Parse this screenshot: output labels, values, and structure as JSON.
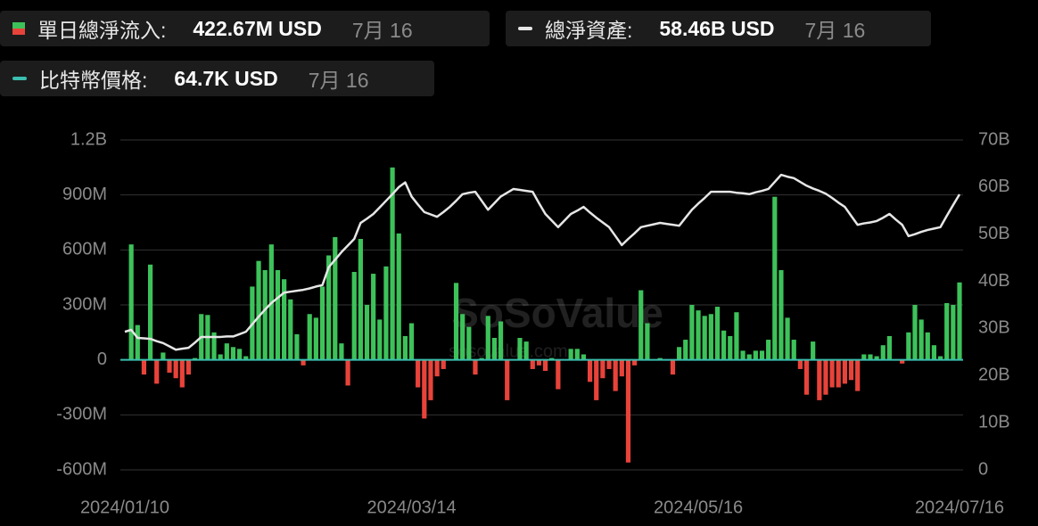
{
  "legend": [
    {
      "label": "單日總淨流入:",
      "value": "422.67M USD",
      "date": "7月 16"
    },
    {
      "label": "總淨資產:",
      "value": "58.46B USD",
      "date": "7月 16"
    },
    {
      "label": "比特幣價格:",
      "value": "64.7K USD",
      "date": "7月 16"
    }
  ],
  "watermark": {
    "brand": "SoSoValue",
    "url": "sosovalue.com"
  },
  "chart_data": {
    "type": "bar",
    "categories": [
      "2024/01/10",
      null,
      null,
      null,
      null,
      null,
      null,
      null,
      null,
      null,
      null,
      null,
      null,
      null,
      null,
      null,
      null,
      null,
      null,
      null,
      null,
      null,
      null,
      null,
      null,
      null,
      null,
      null,
      null,
      null,
      null,
      null,
      null,
      null,
      null,
      null,
      null,
      null,
      null,
      null,
      null,
      null,
      null,
      null,
      null,
      "2024/03/14",
      null,
      null,
      null,
      null,
      null,
      null,
      null,
      null,
      null,
      null,
      null,
      null,
      null,
      null,
      null,
      null,
      null,
      null,
      null,
      null,
      null,
      null,
      null,
      null,
      null,
      null,
      null,
      null,
      null,
      null,
      null,
      null,
      null,
      null,
      null,
      null,
      null,
      null,
      null,
      null,
      null,
      null,
      null,
      null,
      "2024/05/16",
      null,
      null,
      null,
      null,
      null,
      null,
      null,
      null,
      null,
      null,
      null,
      null,
      null,
      null,
      null,
      null,
      null,
      null,
      null,
      null,
      null,
      null,
      null,
      null,
      null,
      null,
      null,
      null,
      null,
      null,
      null,
      null,
      null,
      null,
      null,
      null,
      null,
      null,
      null,
      null,
      "2024/07/16"
    ],
    "series": [
      {
        "type": "bar",
        "color": "#3dc25a",
        "negative_color": "#e8433a",
        "values": [
          null,
          630,
          190,
          -80,
          520,
          -130,
          40,
          -70,
          -100,
          -150,
          -80,
          10,
          250,
          245,
          150,
          30,
          90,
          70,
          60,
          20,
          400,
          540,
          490,
          630,
          490,
          440,
          330,
          140,
          -30,
          250,
          230,
          400,
          570,
          670,
          90,
          -140,
          480,
          660,
          300,
          470,
          220,
          510,
          1050,
          690,
          130,
          200,
          -150,
          -320,
          -220,
          -90,
          -50,
          0,
          420,
          250,
          180,
          -80,
          10,
          240,
          120,
          210,
          -220,
          0,
          120,
          100,
          -50,
          -30,
          -60,
          10,
          -160,
          0,
          60,
          60,
          30,
          -120,
          -220,
          -100,
          -50,
          -170,
          -90,
          -560,
          -30,
          380,
          200,
          0,
          10,
          0,
          -80,
          70,
          110,
          300,
          270,
          240,
          250,
          290,
          160,
          130,
          260,
          50,
          30,
          50,
          50,
          110,
          890,
          490,
          230,
          110,
          -50,
          -190,
          100,
          -220,
          -190,
          -150,
          -150,
          -130,
          -110,
          -170,
          30,
          30,
          20,
          80,
          130,
          0,
          -20,
          150,
          300,
          220,
          150,
          80,
          20,
          310,
          300,
          422.67
        ]
      },
      {
        "type": "line",
        "axis": "y2",
        "color": "#e6e6e6",
        "values": [
          29.3,
          29.7,
          28,
          27.9,
          27.8,
          27.3,
          26.9,
          26.2,
          25.5,
          25.7,
          25.9,
          27,
          28.2,
          28.2,
          28.2,
          28.2,
          28.3,
          28.3,
          28.8,
          29.3,
          30.9,
          32.5,
          34,
          35.4,
          36.5,
          37.6,
          37.8,
          38,
          38.2,
          38.5,
          38.9,
          39.2,
          43,
          44.6,
          46.2,
          47.6,
          49,
          52.4,
          53.3,
          54.3,
          55.7,
          57.1,
          58.5,
          60,
          61,
          58,
          56.3,
          54.7,
          54.2,
          53.7,
          54.7,
          55.8,
          57.1,
          58.5,
          58.8,
          59,
          57.1,
          55.2,
          56.6,
          58,
          58.8,
          59.6,
          59.4,
          59.2,
          59,
          56.6,
          54.3,
          52.9,
          51.5,
          52.9,
          54.3,
          55,
          55.8,
          54.6,
          53.5,
          52.5,
          51.5,
          49.6,
          47.7,
          49,
          50.2,
          51.5,
          51.8,
          52.1,
          52.4,
          52.2,
          52,
          51.8,
          53.5,
          55.2,
          56.5,
          57.7,
          59,
          59,
          59,
          59,
          58.8,
          58.7,
          58.5,
          58.9,
          59.2,
          59.6,
          61.1,
          62.6,
          62.2,
          61.9,
          61.1,
          60.3,
          59.7,
          59.2,
          58.6,
          57.7,
          56.7,
          55.8,
          53.9,
          52,
          52.3,
          52.5,
          52.8,
          53.5,
          54.3,
          53.1,
          52,
          49.6,
          50,
          50.5,
          50.9,
          51.2,
          51.5,
          53.9,
          56.2,
          58.46
        ]
      }
    ],
    "ylim": [
      -600,
      1200
    ],
    "yticks": [
      {
        "value": -600,
        "label": "-600M"
      },
      {
        "value": -300,
        "label": "-300M"
      },
      0,
      {
        "value": 300,
        "label": "300M"
      },
      {
        "value": 600,
        "label": "600M"
      },
      {
        "value": 900,
        "label": "900M"
      },
      {
        "value": 1200,
        "label": "1.2B"
      }
    ],
    "y2lim": [
      0,
      70
    ],
    "y2ticks": [
      0,
      {
        "value": 10,
        "label": "10B"
      },
      {
        "value": 20,
        "label": "20B"
      },
      {
        "value": 30,
        "label": "30B"
      },
      {
        "value": 40,
        "label": "40B"
      },
      {
        "value": 50,
        "label": "50B"
      },
      {
        "value": 60,
        "label": "60B"
      },
      {
        "value": 70,
        "label": "70B"
      }
    ],
    "grid": true
  }
}
